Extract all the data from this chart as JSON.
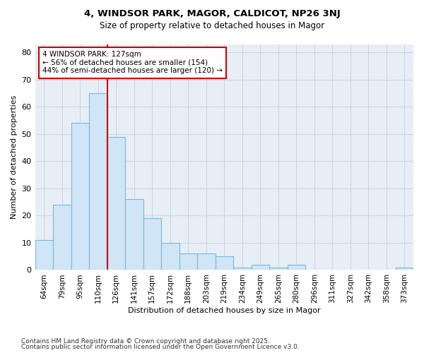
{
  "title1": "4, WINDSOR PARK, MAGOR, CALDICOT, NP26 3NJ",
  "title2": "Size of property relative to detached houses in Magor",
  "xlabel": "Distribution of detached houses by size in Magor",
  "ylabel": "Number of detached properties",
  "categories": [
    "64sqm",
    "79sqm",
    "95sqm",
    "110sqm",
    "126sqm",
    "141sqm",
    "157sqm",
    "172sqm",
    "188sqm",
    "203sqm",
    "219sqm",
    "234sqm",
    "249sqm",
    "265sqm",
    "280sqm",
    "296sqm",
    "311sqm",
    "327sqm",
    "342sqm",
    "358sqm",
    "373sqm"
  ],
  "values": [
    11,
    24,
    54,
    65,
    49,
    26,
    19,
    10,
    6,
    6,
    5,
    1,
    2,
    1,
    2,
    0,
    0,
    0,
    0,
    0,
    1
  ],
  "bar_color": "#d0e5f5",
  "bar_edge_color": "#7ab8d8",
  "vline_x": 3.5,
  "annotation_text": "4 WINDSOR PARK: 127sqm\n← 56% of detached houses are smaller (154)\n44% of semi-detached houses are larger (120) →",
  "annotation_box_color": "#ffffff",
  "annotation_box_edge": "#cc0000",
  "vline_color": "#cc0000",
  "ylim": [
    0,
    83
  ],
  "yticks": [
    0,
    10,
    20,
    30,
    40,
    50,
    60,
    70,
    80
  ],
  "grid_color": "#c8d4e0",
  "bg_color": "#e8eef5",
  "footer1": "Contains HM Land Registry data © Crown copyright and database right 2025.",
  "footer2": "Contains public sector information licensed under the Open Government Licence v3.0."
}
